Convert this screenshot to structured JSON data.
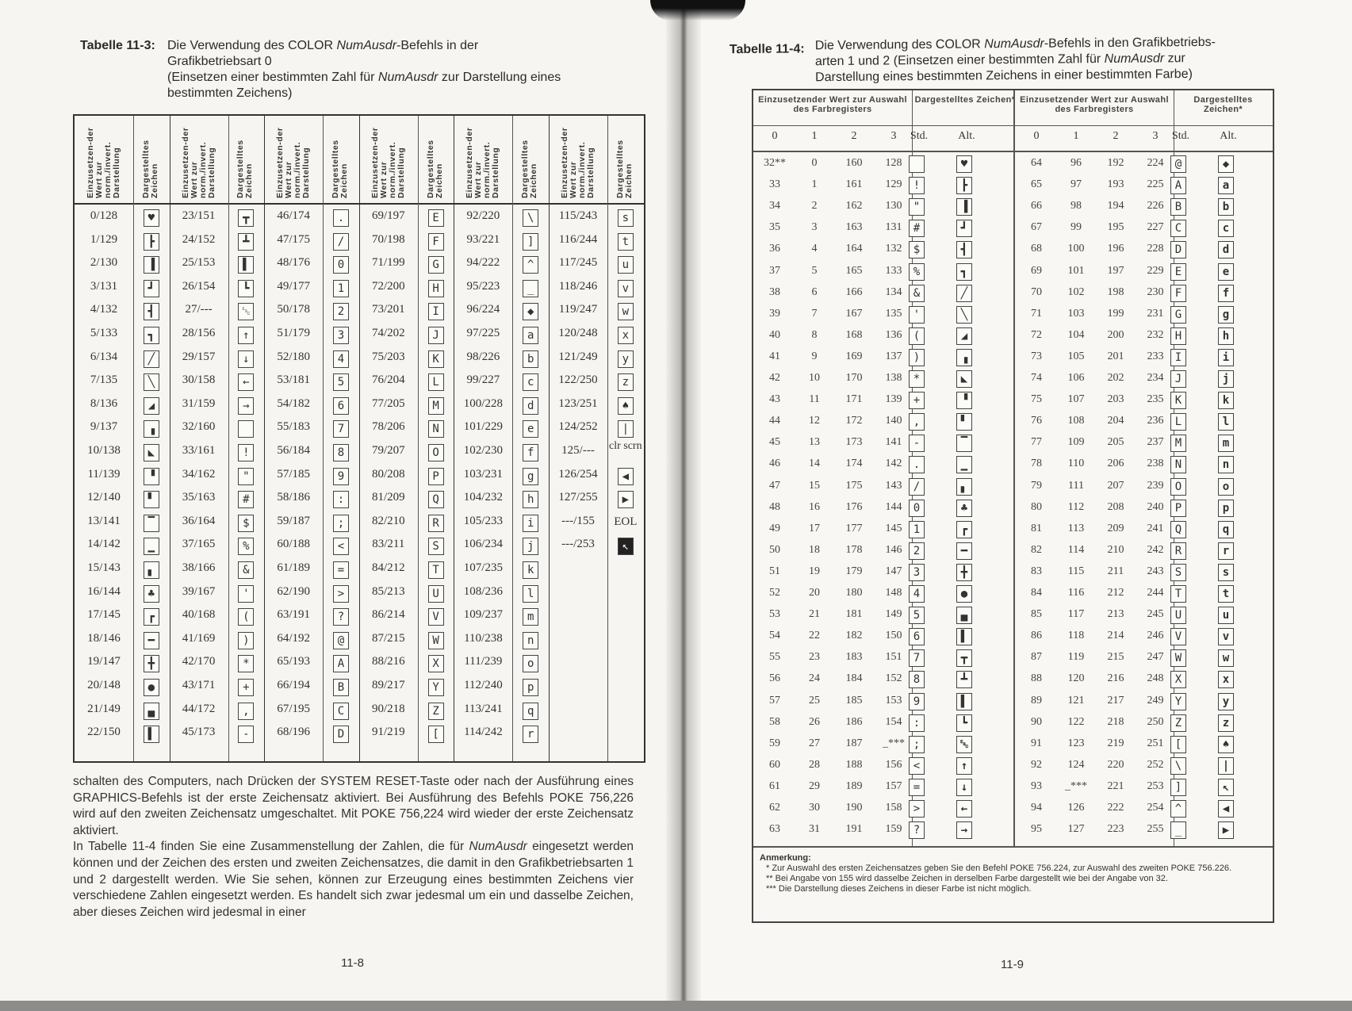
{
  "left_page": {
    "table_caption_label": "Tabelle 11-3:",
    "table_caption_lines": [
      "Die Verwendung des COLOR ",
      "NumAusdr",
      "-Befehls in der",
      "Grafikbetriebsart 0",
      "(Einsetzen einer bestimmten Zahl für ",
      "NumAusdr",
      " zur Darstellung eines",
      "bestimmten Zeichens)"
    ],
    "table": {
      "header_value": "Einzusetzen-der Wert zur norm./invert. Darstellung",
      "header_glyph": "Dargestelltes Zeichen",
      "groups": [
        [
          [
            "0/128",
            "♥"
          ],
          [
            "1/129",
            "┣"
          ],
          [
            "2/130",
            "▐"
          ],
          [
            "3/131",
            "┛"
          ],
          [
            "4/132",
            "┫"
          ],
          [
            "5/133",
            "┓"
          ],
          [
            "6/134",
            "╱"
          ],
          [
            "7/135",
            "╲"
          ],
          [
            "8/136",
            "◢"
          ],
          [
            "9/137",
            "▗"
          ],
          [
            "10/138",
            "◣"
          ],
          [
            "11/139",
            "▝"
          ],
          [
            "12/140",
            "▘"
          ],
          [
            "13/141",
            "▔"
          ],
          [
            "14/142",
            "▁"
          ],
          [
            "15/143",
            "▖"
          ],
          [
            "16/144",
            "♣"
          ],
          [
            "17/145",
            "┏"
          ],
          [
            "18/146",
            "━"
          ],
          [
            "19/147",
            "╋"
          ],
          [
            "20/148",
            "●"
          ],
          [
            "21/149",
            "▄"
          ],
          [
            "22/150",
            "▌"
          ]
        ],
        [
          [
            "23/151",
            "┳"
          ],
          [
            "24/152",
            "┻"
          ],
          [
            "25/153",
            "▌"
          ],
          [
            "26/154",
            "┗"
          ],
          [
            "27/---",
            "␛"
          ],
          [
            "28/156",
            "↑"
          ],
          [
            "29/157",
            "↓"
          ],
          [
            "30/158",
            "←"
          ],
          [
            "31/159",
            "→"
          ],
          [
            "32/160",
            " "
          ],
          [
            "33/161",
            "!"
          ],
          [
            "34/162",
            "\""
          ],
          [
            "35/163",
            "#"
          ],
          [
            "36/164",
            "$"
          ],
          [
            "37/165",
            "%"
          ],
          [
            "38/166",
            "&"
          ],
          [
            "39/167",
            "'"
          ],
          [
            "40/168",
            "("
          ],
          [
            "41/169",
            ")"
          ],
          [
            "42/170",
            "*"
          ],
          [
            "43/171",
            "+"
          ],
          [
            "44/172",
            ","
          ],
          [
            "45/173",
            "-"
          ]
        ],
        [
          [
            "46/174",
            "."
          ],
          [
            "47/175",
            "/"
          ],
          [
            "48/176",
            "0"
          ],
          [
            "49/177",
            "1"
          ],
          [
            "50/178",
            "2"
          ],
          [
            "51/179",
            "3"
          ],
          [
            "52/180",
            "4"
          ],
          [
            "53/181",
            "5"
          ],
          [
            "54/182",
            "6"
          ],
          [
            "55/183",
            "7"
          ],
          [
            "56/184",
            "8"
          ],
          [
            "57/185",
            "9"
          ],
          [
            "58/186",
            ":"
          ],
          [
            "59/187",
            ";"
          ],
          [
            "60/188",
            "<"
          ],
          [
            "61/189",
            "="
          ],
          [
            "62/190",
            ">"
          ],
          [
            "63/191",
            "?"
          ],
          [
            "64/192",
            "@"
          ],
          [
            "65/193",
            "A"
          ],
          [
            "66/194",
            "B"
          ],
          [
            "67/195",
            "C"
          ],
          [
            "68/196",
            "D"
          ]
        ],
        [
          [
            "69/197",
            "E"
          ],
          [
            "70/198",
            "F"
          ],
          [
            "71/199",
            "G"
          ],
          [
            "72/200",
            "H"
          ],
          [
            "73/201",
            "I"
          ],
          [
            "74/202",
            "J"
          ],
          [
            "75/203",
            "K"
          ],
          [
            "76/204",
            "L"
          ],
          [
            "77/205",
            "M"
          ],
          [
            "78/206",
            "N"
          ],
          [
            "79/207",
            "O"
          ],
          [
            "80/208",
            "P"
          ],
          [
            "81/209",
            "Q"
          ],
          [
            "82/210",
            "R"
          ],
          [
            "83/211",
            "S"
          ],
          [
            "84/212",
            "T"
          ],
          [
            "85/213",
            "U"
          ],
          [
            "86/214",
            "V"
          ],
          [
            "87/215",
            "W"
          ],
          [
            "88/216",
            "X"
          ],
          [
            "89/217",
            "Y"
          ],
          [
            "90/218",
            "Z"
          ],
          [
            "91/219",
            "["
          ]
        ],
        [
          [
            "92/220",
            "\\"
          ],
          [
            "93/221",
            "]"
          ],
          [
            "94/222",
            "^"
          ],
          [
            "95/223",
            "_"
          ],
          [
            "96/224",
            "◆"
          ],
          [
            "97/225",
            "a"
          ],
          [
            "98/226",
            "b"
          ],
          [
            "99/227",
            "c"
          ],
          [
            "100/228",
            "d"
          ],
          [
            "101/229",
            "e"
          ],
          [
            "102/230",
            "f"
          ],
          [
            "103/231",
            "g"
          ],
          [
            "104/232",
            "h"
          ],
          [
            "105/233",
            "i"
          ],
          [
            "106/234",
            "j"
          ],
          [
            "107/235",
            "k"
          ],
          [
            "108/236",
            "l"
          ],
          [
            "109/237",
            "m"
          ],
          [
            "110/238",
            "n"
          ],
          [
            "111/239",
            "o"
          ],
          [
            "112/240",
            "p"
          ],
          [
            "113/241",
            "q"
          ],
          [
            "114/242",
            "r"
          ]
        ],
        [
          [
            "115/243",
            "s"
          ],
          [
            "116/244",
            "t"
          ],
          [
            "117/245",
            "u"
          ],
          [
            "118/246",
            "v"
          ],
          [
            "119/247",
            "w"
          ],
          [
            "120/248",
            "x"
          ],
          [
            "121/249",
            "y"
          ],
          [
            "122/250",
            "z"
          ],
          [
            "123/251",
            "♠"
          ],
          [
            "124/252",
            "|"
          ],
          [
            "125/---",
            "clr scrn"
          ],
          [
            "126/254",
            "◀"
          ],
          [
            "127/255",
            "▶"
          ],
          [
            "---/155",
            "EOL"
          ],
          [
            "---/253",
            "◙"
          ]
        ]
      ]
    },
    "body_text": [
      "schalten des Computers, nach Drücken der SYSTEM RESET-Taste oder nach der Ausführung eines GRAPHICS-Befehls ist der erste Zeichensatz aktiviert. Bei Ausführung des Befehls POKE 756,226 wird auf den zweiten Zeichensatz umgeschaltet. Mit POKE 756,224 wird wieder der erste Zeichensatz aktiviert.",
      "In Tabelle 11-4 finden Sie eine Zusammenstellung der Zahlen, die für ",
      "NumAusdr",
      " eingesetzt werden können und der Zeichen des ersten und zweiten Zeichensatzes, die damit in den Grafikbetriebsarten 1 und 2 dargestellt werden. Wie Sie sehen, können zur Erzeugung eines bestimmten Zeichens vier verschiedene Zahlen eingesetzt werden. Es handelt sich zwar jedesmal um ein und dasselbe Zeichen, aber dieses Zeichen wird jedesmal in einer"
    ],
    "page_number": "11-8"
  },
  "right_page": {
    "table_caption_label": "Tabelle 11-4:",
    "table_caption_lines": [
      "Die Verwendung des COLOR ",
      "NumAusdr",
      "-Befehls in den Grafikbetriebs-",
      "arten 1 und 2 (Einsetzen einer bestimmten Zahl für ",
      "NumAusdr",
      " zur",
      "Darstellung eines bestimmten Zeichens in einer bestimmten Farbe)"
    ],
    "table": {
      "header_value": "Einzusetzender Wert zur Auswahl des Farbregisters",
      "header_glyph": "Dargestelltes Zeichen*",
      "sub_headers": [
        "0",
        "1",
        "2",
        "3",
        "Std.",
        "Alt."
      ],
      "left_rows": [
        [
          "32**",
          "0",
          "160",
          "128",
          " ",
          "♥"
        ],
        [
          "33",
          "1",
          "161",
          "129",
          "!",
          "┣"
        ],
        [
          "34",
          "2",
          "162",
          "130",
          "\"",
          "▐"
        ],
        [
          "35",
          "3",
          "163",
          "131",
          "#",
          "┛"
        ],
        [
          "36",
          "4",
          "164",
          "132",
          "$",
          "┫"
        ],
        [
          "37",
          "5",
          "165",
          "133",
          "%",
          "┓"
        ],
        [
          "38",
          "6",
          "166",
          "134",
          "&",
          "╱"
        ],
        [
          "39",
          "7",
          "167",
          "135",
          "'",
          "╲"
        ],
        [
          "40",
          "8",
          "168",
          "136",
          "(",
          "◢"
        ],
        [
          "41",
          "9",
          "169",
          "137",
          ")",
          "▗"
        ],
        [
          "42",
          "10",
          "170",
          "138",
          "*",
          "◣"
        ],
        [
          "43",
          "11",
          "171",
          "139",
          "+",
          "▝"
        ],
        [
          "44",
          "12",
          "172",
          "140",
          ",",
          "▘"
        ],
        [
          "45",
          "13",
          "173",
          "141",
          "-",
          "▔"
        ],
        [
          "46",
          "14",
          "174",
          "142",
          ".",
          "▁"
        ],
        [
          "47",
          "15",
          "175",
          "143",
          "/",
          "▖"
        ],
        [
          "48",
          "16",
          "176",
          "144",
          "0",
          "♣"
        ],
        [
          "49",
          "17",
          "177",
          "145",
          "1",
          "┏"
        ],
        [
          "50",
          "18",
          "178",
          "146",
          "2",
          "━"
        ],
        [
          "51",
          "19",
          "179",
          "147",
          "3",
          "╋"
        ],
        [
          "52",
          "20",
          "180",
          "148",
          "4",
          "●"
        ],
        [
          "53",
          "21",
          "181",
          "149",
          "5",
          "▄"
        ],
        [
          "54",
          "22",
          "182",
          "150",
          "6",
          "▌"
        ],
        [
          "55",
          "23",
          "183",
          "151",
          "7",
          "┳"
        ],
        [
          "56",
          "24",
          "184",
          "152",
          "8",
          "┻"
        ],
        [
          "57",
          "25",
          "185",
          "153",
          "9",
          "▌"
        ],
        [
          "58",
          "26",
          "186",
          "154",
          ":",
          "┗"
        ],
        [
          "59",
          "27",
          "187",
          "_***",
          ";",
          "␛"
        ],
        [
          "60",
          "28",
          "188",
          "156",
          "<",
          "↑"
        ],
        [
          "61",
          "29",
          "189",
          "157",
          "=",
          "↓"
        ],
        [
          "62",
          "30",
          "190",
          "158",
          ">",
          "←"
        ],
        [
          "63",
          "31",
          "191",
          "159",
          "?",
          "→"
        ]
      ],
      "right_rows": [
        [
          "64",
          "96",
          "192",
          "224",
          "@",
          "◆"
        ],
        [
          "65",
          "97",
          "193",
          "225",
          "A",
          "a"
        ],
        [
          "66",
          "98",
          "194",
          "226",
          "B",
          "b"
        ],
        [
          "67",
          "99",
          "195",
          "227",
          "C",
          "c"
        ],
        [
          "68",
          "100",
          "196",
          "228",
          "D",
          "d"
        ],
        [
          "69",
          "101",
          "197",
          "229",
          "E",
          "e"
        ],
        [
          "70",
          "102",
          "198",
          "230",
          "F",
          "f"
        ],
        [
          "71",
          "103",
          "199",
          "231",
          "G",
          "g"
        ],
        [
          "72",
          "104",
          "200",
          "232",
          "H",
          "h"
        ],
        [
          "73",
          "105",
          "201",
          "233",
          "I",
          "i"
        ],
        [
          "74",
          "106",
          "202",
          "234",
          "J",
          "j"
        ],
        [
          "75",
          "107",
          "203",
          "235",
          "K",
          "k"
        ],
        [
          "76",
          "108",
          "204",
          "236",
          "L",
          "l"
        ],
        [
          "77",
          "109",
          "205",
          "237",
          "M",
          "m"
        ],
        [
          "78",
          "110",
          "206",
          "238",
          "N",
          "n"
        ],
        [
          "79",
          "111",
          "207",
          "239",
          "O",
          "o"
        ],
        [
          "80",
          "112",
          "208",
          "240",
          "P",
          "p"
        ],
        [
          "81",
          "113",
          "209",
          "241",
          "Q",
          "q"
        ],
        [
          "82",
          "114",
          "210",
          "242",
          "R",
          "r"
        ],
        [
          "83",
          "115",
          "211",
          "243",
          "S",
          "s"
        ],
        [
          "84",
          "116",
          "212",
          "244",
          "T",
          "t"
        ],
        [
          "85",
          "117",
          "213",
          "245",
          "U",
          "u"
        ],
        [
          "86",
          "118",
          "214",
          "246",
          "V",
          "v"
        ],
        [
          "87",
          "119",
          "215",
          "247",
          "W",
          "w"
        ],
        [
          "88",
          "120",
          "216",
          "248",
          "X",
          "x"
        ],
        [
          "89",
          "121",
          "217",
          "249",
          "Y",
          "y"
        ],
        [
          "90",
          "122",
          "218",
          "250",
          "Z",
          "z"
        ],
        [
          "91",
          "123",
          "219",
          "251",
          "[",
          "♠"
        ],
        [
          "92",
          "124",
          "220",
          "252",
          "\\",
          "|"
        ],
        [
          "93",
          "_***",
          "221",
          "253",
          "]",
          "↖"
        ],
        [
          "94",
          "126",
          "222",
          "254",
          "^",
          "◀"
        ],
        [
          "95",
          "127",
          "223",
          "255",
          "_",
          "▶"
        ]
      ]
    },
    "notes": {
      "heading": "Anmerkung:",
      "items": [
        "*  Zur Auswahl des ersten Zeichensatzes geben Sie den Befehl POKE 756.224, zur Auswahl des zweiten POKE 756.226.",
        "**  Bei Angabe von 155 wird dasselbe Zeichen in derselben Farbe dargestellt wie bei der Angabe von 32.",
        "***  Die Darstellung dieses Zeichens in dieser Farbe ist nicht möglich."
      ]
    },
    "page_number": "11-9"
  }
}
